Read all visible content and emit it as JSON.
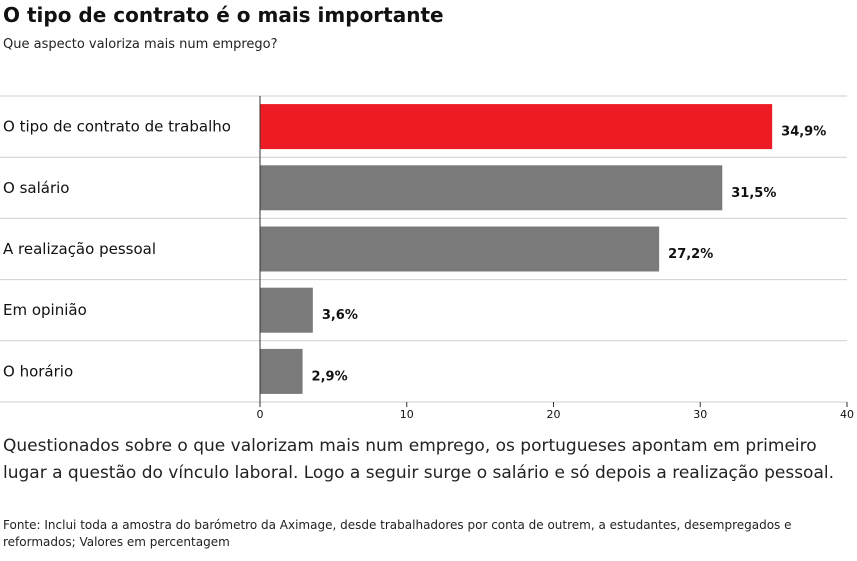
{
  "header": {
    "title": "O tipo de contrato é o mais importante",
    "subtitle": "Que aspecto valoriza mais num emprego?"
  },
  "colors": {
    "highlight": "#ed1c24",
    "default": "#7a7a7a",
    "gridline": "#cfcfcf",
    "axis": "#333333"
  },
  "chart_data": {
    "type": "bar",
    "orientation": "horizontal",
    "title": "O tipo de contrato é o mais importante",
    "subtitle": "Que aspecto valoriza mais num emprego?",
    "categories": [
      "O tipo de contrato de trabalho",
      "O salário",
      "A realização pessoal",
      "Em opinião",
      "O horário"
    ],
    "values": [
      34.9,
      31.5,
      27.2,
      3.6,
      2.9
    ],
    "value_labels": [
      "34,9%",
      "31,5%",
      "27,2%",
      "3,6%",
      "2,9%"
    ],
    "highlight_index": 0,
    "xlim": [
      0,
      40
    ],
    "xticks": [
      0,
      10,
      20,
      30,
      40
    ],
    "xlabel": "",
    "ylabel": "",
    "grid": true
  },
  "footer": {
    "description": "Questionados sobre o que valorizam mais num emprego, os portugueses apontam em primeiro lugar a questão do vínculo laboral. Logo a seguir surge o salário e só depois a realização pessoal.",
    "source": "Fonte: Inclui toda a amostra do barómetro da Aximage, desde trabalhadores por conta de outrem, a estudantes, desempregados e reformados; Valores em percentagem"
  }
}
